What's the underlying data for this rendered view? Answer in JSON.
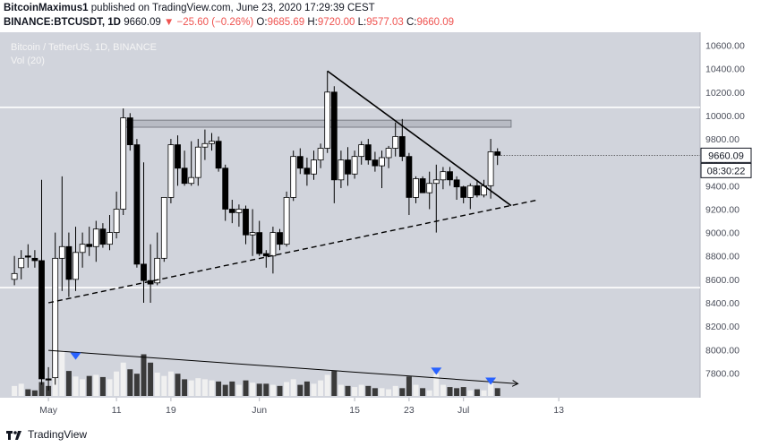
{
  "header": {
    "line1": {
      "author": "BitcoinMaximus1",
      "text": " published on TradingView.com, June 23, 2020 17:29:39 CEST"
    },
    "line2": {
      "symbol": "BINANCE:BTCUSDT, 1D",
      "last": "9660.09",
      "change": "▼ −25.60 (−0.26%)",
      "o_label": "O:",
      "o": "9685.69",
      "h_label": "H:",
      "h": "9720.00",
      "l_label": "L:",
      "l": "9577.03",
      "c_label": "C:",
      "c": "9660.09"
    }
  },
  "legend": {
    "title": "Bitcoin / TetherUS, 1D, BINANCE",
    "vol": "Vol (20)"
  },
  "price_badge": "9660.09",
  "countdown_badge": "08:30:22",
  "footer": {
    "brand": "TradingView"
  },
  "colors": {
    "background": "#d1d4dc",
    "up": "#ffffff",
    "down": "#000000",
    "vol_up": "#f0f0f0",
    "vol_down": "#3a3a3a",
    "marker": "#2962ff",
    "axis_text": "#4a4e5a"
  },
  "chart_data": {
    "type": "candlestick",
    "y_axis": {
      "ticks": [
        "10600.00",
        "10400.00",
        "10200.00",
        "10000.00",
        "9800.00",
        "9600.00",
        "9400.00",
        "9200.00",
        "9000.00",
        "8800.00",
        "8600.00",
        "8400.00",
        "8200.00",
        "8000.00",
        "7800.00"
      ],
      "range": [
        7650,
        10650
      ]
    },
    "x_axis": {
      "labels": [
        "May",
        "11",
        "19",
        "Jun",
        "15",
        "23",
        "Jul",
        "13"
      ],
      "label_days": [
        1,
        11,
        19,
        32,
        46,
        54,
        62,
        76
      ]
    },
    "candles": [
      {
        "d": -4,
        "o": 8600,
        "h": 8800,
        "l": 8550,
        "c": 8650
      },
      {
        "d": -3,
        "o": 8700,
        "h": 8850,
        "l": 8600,
        "c": 8780
      },
      {
        "d": -2,
        "o": 8800,
        "h": 8900,
        "l": 8700,
        "c": 8790
      },
      {
        "d": -1,
        "o": 8780,
        "h": 8850,
        "l": 8700,
        "c": 8760
      },
      {
        "d": 0,
        "o": 8760,
        "h": 9450,
        "l": 7700,
        "c": 7750
      },
      {
        "d": 1,
        "o": 7750,
        "h": 7850,
        "l": 7650,
        "c": 7740
      },
      {
        "d": 2,
        "o": 7760,
        "h": 9000,
        "l": 7700,
        "c": 8780
      },
      {
        "d": 3,
        "o": 8780,
        "h": 9480,
        "l": 8500,
        "c": 8880
      },
      {
        "d": 4,
        "o": 8880,
        "h": 9000,
        "l": 8450,
        "c": 8600
      },
      {
        "d": 5,
        "o": 8600,
        "h": 9050,
        "l": 8500,
        "c": 8830
      },
      {
        "d": 6,
        "o": 8830,
        "h": 9000,
        "l": 8700,
        "c": 8900
      },
      {
        "d": 7,
        "o": 8900,
        "h": 9050,
        "l": 8800,
        "c": 8880
      },
      {
        "d": 8,
        "o": 8880,
        "h": 9100,
        "l": 8750,
        "c": 9030
      },
      {
        "d": 9,
        "o": 9030,
        "h": 9080,
        "l": 8870,
        "c": 8900
      },
      {
        "d": 10,
        "o": 8900,
        "h": 9150,
        "l": 8850,
        "c": 9000
      },
      {
        "d": 11,
        "o": 9000,
        "h": 9350,
        "l": 8950,
        "c": 9200
      },
      {
        "d": 12,
        "o": 9200,
        "h": 10060,
        "l": 9150,
        "c": 9980
      },
      {
        "d": 13,
        "o": 9980,
        "h": 10020,
        "l": 9700,
        "c": 9750
      },
      {
        "d": 14,
        "o": 9750,
        "h": 9800,
        "l": 8700,
        "c": 8730
      },
      {
        "d": 15,
        "o": 8730,
        "h": 9600,
        "l": 8400,
        "c": 8590
      },
      {
        "d": 16,
        "o": 8590,
        "h": 8900,
        "l": 8400,
        "c": 8560
      },
      {
        "d": 17,
        "o": 8570,
        "h": 9000,
        "l": 8550,
        "c": 8780
      },
      {
        "d": 18,
        "o": 8780,
        "h": 9300,
        "l": 8750,
        "c": 9300
      },
      {
        "d": 19,
        "o": 9300,
        "h": 9800,
        "l": 9250,
        "c": 9750
      },
      {
        "d": 20,
        "o": 9750,
        "h": 9830,
        "l": 9400,
        "c": 9550
      },
      {
        "d": 21,
        "o": 9550,
        "h": 9700,
        "l": 9400,
        "c": 9420
      },
      {
        "d": 22,
        "o": 9420,
        "h": 9780,
        "l": 9400,
        "c": 9470
      },
      {
        "d": 23,
        "o": 9470,
        "h": 9800,
        "l": 9400,
        "c": 9730
      },
      {
        "d": 24,
        "o": 9730,
        "h": 9880,
        "l": 9620,
        "c": 9760
      },
      {
        "d": 25,
        "o": 9760,
        "h": 9850,
        "l": 9700,
        "c": 9780
      },
      {
        "d": 26,
        "o": 9780,
        "h": 9820,
        "l": 9520,
        "c": 9550
      },
      {
        "d": 27,
        "o": 9550,
        "h": 9580,
        "l": 9100,
        "c": 9200
      },
      {
        "d": 28,
        "o": 9200,
        "h": 9280,
        "l": 9080,
        "c": 9170
      },
      {
        "d": 29,
        "o": 9170,
        "h": 9240,
        "l": 9050,
        "c": 9200
      },
      {
        "d": 30,
        "o": 9200,
        "h": 9230,
        "l": 8900,
        "c": 8980
      },
      {
        "d": 31,
        "o": 8980,
        "h": 9200,
        "l": 8800,
        "c": 9000
      },
      {
        "d": 32,
        "o": 9000,
        "h": 9100,
        "l": 8800,
        "c": 8820
      },
      {
        "d": 33,
        "o": 8820,
        "h": 8850,
        "l": 8700,
        "c": 8800
      },
      {
        "d": 34,
        "o": 8800,
        "h": 9050,
        "l": 8650,
        "c": 9000
      },
      {
        "d": 35,
        "o": 9000,
        "h": 9030,
        "l": 8850,
        "c": 8900
      },
      {
        "d": 36,
        "o": 8900,
        "h": 9350,
        "l": 8880,
        "c": 9300
      },
      {
        "d": 37,
        "o": 9300,
        "h": 9700,
        "l": 9270,
        "c": 9650
      },
      {
        "d": 38,
        "o": 9650,
        "h": 9720,
        "l": 9500,
        "c": 9550
      },
      {
        "d": 39,
        "o": 9550,
        "h": 9640,
        "l": 9400,
        "c": 9500
      },
      {
        "d": 40,
        "o": 9500,
        "h": 9700,
        "l": 9450,
        "c": 9620
      },
      {
        "d": 41,
        "o": 9620,
        "h": 9760,
        "l": 9550,
        "c": 9720
      },
      {
        "d": 42,
        "o": 9720,
        "h": 10380,
        "l": 9680,
        "c": 10200
      },
      {
        "d": 43,
        "o": 10200,
        "h": 10250,
        "l": 9250,
        "c": 9450
      },
      {
        "d": 44,
        "o": 9450,
        "h": 9700,
        "l": 9380,
        "c": 9620
      },
      {
        "d": 45,
        "o": 9620,
        "h": 9730,
        "l": 9400,
        "c": 9500
      },
      {
        "d": 46,
        "o": 9500,
        "h": 9700,
        "l": 9460,
        "c": 9650
      },
      {
        "d": 47,
        "o": 9650,
        "h": 9780,
        "l": 9580,
        "c": 9750
      },
      {
        "d": 48,
        "o": 9750,
        "h": 9800,
        "l": 9580,
        "c": 9620
      },
      {
        "d": 49,
        "o": 9620,
        "h": 9690,
        "l": 9520,
        "c": 9570
      },
      {
        "d": 50,
        "o": 9570,
        "h": 9700,
        "l": 9380,
        "c": 9640
      },
      {
        "d": 51,
        "o": 9640,
        "h": 9740,
        "l": 9550,
        "c": 9720
      },
      {
        "d": 52,
        "o": 9720,
        "h": 9940,
        "l": 9650,
        "c": 9820
      },
      {
        "d": 53,
        "o": 9820,
        "h": 9970,
        "l": 9610,
        "c": 9650
      },
      {
        "d": 54,
        "o": 9650,
        "h": 9680,
        "l": 9150,
        "c": 9300
      },
      {
        "d": 55,
        "o": 9300,
        "h": 9480,
        "l": 9250,
        "c": 9460
      },
      {
        "d": 56,
        "o": 9460,
        "h": 9480,
        "l": 9340,
        "c": 9340
      },
      {
        "d": 57,
        "o": 9340,
        "h": 9520,
        "l": 9200,
        "c": 9420
      },
      {
        "d": 58,
        "o": 9420,
        "h": 9580,
        "l": 9000,
        "c": 9450
      },
      {
        "d": 59,
        "o": 9450,
        "h": 9560,
        "l": 9370,
        "c": 9520
      },
      {
        "d": 60,
        "o": 9520,
        "h": 9560,
        "l": 9400,
        "c": 9450
      },
      {
        "d": 61,
        "o": 9450,
        "h": 9480,
        "l": 9280,
        "c": 9390
      },
      {
        "d": 62,
        "o": 9390,
        "h": 9400,
        "l": 9250,
        "c": 9300
      },
      {
        "d": 63,
        "o": 9300,
        "h": 9420,
        "l": 9200,
        "c": 9400
      },
      {
        "d": 64,
        "o": 9400,
        "h": 9450,
        "l": 9300,
        "c": 9320
      },
      {
        "d": 65,
        "o": 9320,
        "h": 9450,
        "l": 9300,
        "c": 9400
      },
      {
        "d": 66,
        "o": 9400,
        "h": 9800,
        "l": 9290,
        "c": 9690
      },
      {
        "d": 67,
        "o": 9690,
        "h": 9720,
        "l": 9577,
        "c": 9660
      }
    ],
    "volume": {
      "range": [
        0,
        100
      ],
      "bars": [
        {
          "d": -4,
          "v": 18
        },
        {
          "d": -3,
          "v": 22
        },
        {
          "d": -2,
          "v": 12
        },
        {
          "d": -1,
          "v": 10
        },
        {
          "d": 0,
          "v": 25
        },
        {
          "d": 1,
          "v": 18
        },
        {
          "d": 2,
          "v": 95
        },
        {
          "d": 3,
          "v": 82
        },
        {
          "d": 4,
          "v": 45
        },
        {
          "d": 5,
          "v": 35
        },
        {
          "d": 6,
          "v": 30
        },
        {
          "d": 7,
          "v": 36
        },
        {
          "d": 8,
          "v": 38
        },
        {
          "d": 9,
          "v": 34
        },
        {
          "d": 10,
          "v": 30
        },
        {
          "d": 11,
          "v": 44
        },
        {
          "d": 12,
          "v": 60
        },
        {
          "d": 13,
          "v": 48
        },
        {
          "d": 14,
          "v": 40
        },
        {
          "d": 15,
          "v": 75
        },
        {
          "d": 16,
          "v": 60
        },
        {
          "d": 17,
          "v": 42
        },
        {
          "d": 18,
          "v": 36
        },
        {
          "d": 19,
          "v": 44
        },
        {
          "d": 20,
          "v": 40
        },
        {
          "d": 21,
          "v": 30
        },
        {
          "d": 22,
          "v": 28
        },
        {
          "d": 23,
          "v": 32
        },
        {
          "d": 24,
          "v": 30
        },
        {
          "d": 25,
          "v": 28
        },
        {
          "d": 26,
          "v": 26
        },
        {
          "d": 27,
          "v": 20
        },
        {
          "d": 28,
          "v": 26
        },
        {
          "d": 29,
          "v": 20
        },
        {
          "d": 30,
          "v": 28
        },
        {
          "d": 31,
          "v": 24
        },
        {
          "d": 32,
          "v": 22
        },
        {
          "d": 33,
          "v": 22
        },
        {
          "d": 34,
          "v": 20
        },
        {
          "d": 35,
          "v": 18
        },
        {
          "d": 36,
          "v": 25
        },
        {
          "d": 37,
          "v": 30
        },
        {
          "d": 38,
          "v": 20
        },
        {
          "d": 39,
          "v": 26
        },
        {
          "d": 40,
          "v": 22
        },
        {
          "d": 41,
          "v": 28
        },
        {
          "d": 42,
          "v": 38
        },
        {
          "d": 43,
          "v": 45
        },
        {
          "d": 44,
          "v": 20
        },
        {
          "d": 45,
          "v": 18
        },
        {
          "d": 46,
          "v": 16
        },
        {
          "d": 47,
          "v": 20
        },
        {
          "d": 48,
          "v": 18
        },
        {
          "d": 49,
          "v": 14
        },
        {
          "d": 50,
          "v": 14
        },
        {
          "d": 51,
          "v": 12
        },
        {
          "d": 52,
          "v": 18
        },
        {
          "d": 53,
          "v": 14
        },
        {
          "d": 54,
          "v": 35
        },
        {
          "d": 55,
          "v": 20
        },
        {
          "d": 56,
          "v": 14
        },
        {
          "d": 57,
          "v": 10
        },
        {
          "d": 58,
          "v": 40
        },
        {
          "d": 59,
          "v": 20
        },
        {
          "d": 60,
          "v": 16
        },
        {
          "d": 61,
          "v": 14
        },
        {
          "d": 62,
          "v": 16
        },
        {
          "d": 63,
          "v": 10
        },
        {
          "d": 64,
          "v": 12
        },
        {
          "d": 65,
          "v": 10
        },
        {
          "d": 66,
          "v": 22
        },
        {
          "d": 67,
          "v": 14
        }
      ]
    },
    "drawings": {
      "horizontal_lines": [
        10070,
        8530
      ],
      "resistance_zone": [
        9900,
        9960
      ],
      "resistance_zone_days": [
        12,
        69
      ],
      "descending_trendline": [
        {
          "d": 42,
          "p": 10380
        },
        {
          "d": 69,
          "p": 9230
        }
      ],
      "ascending_trendline_dashed": [
        {
          "d": 1,
          "p": 8400
        },
        {
          "d": 73,
          "p": 9280
        }
      ],
      "volume_trendline": [
        {
          "d": 1,
          "v": 82
        },
        {
          "d": 70,
          "v": 22
        }
      ],
      "volume_markers": [
        {
          "d": 5,
          "v": 70
        },
        {
          "d": 58,
          "v": 43
        },
        {
          "d": 66,
          "v": 25
        }
      ]
    },
    "grid": false
  }
}
